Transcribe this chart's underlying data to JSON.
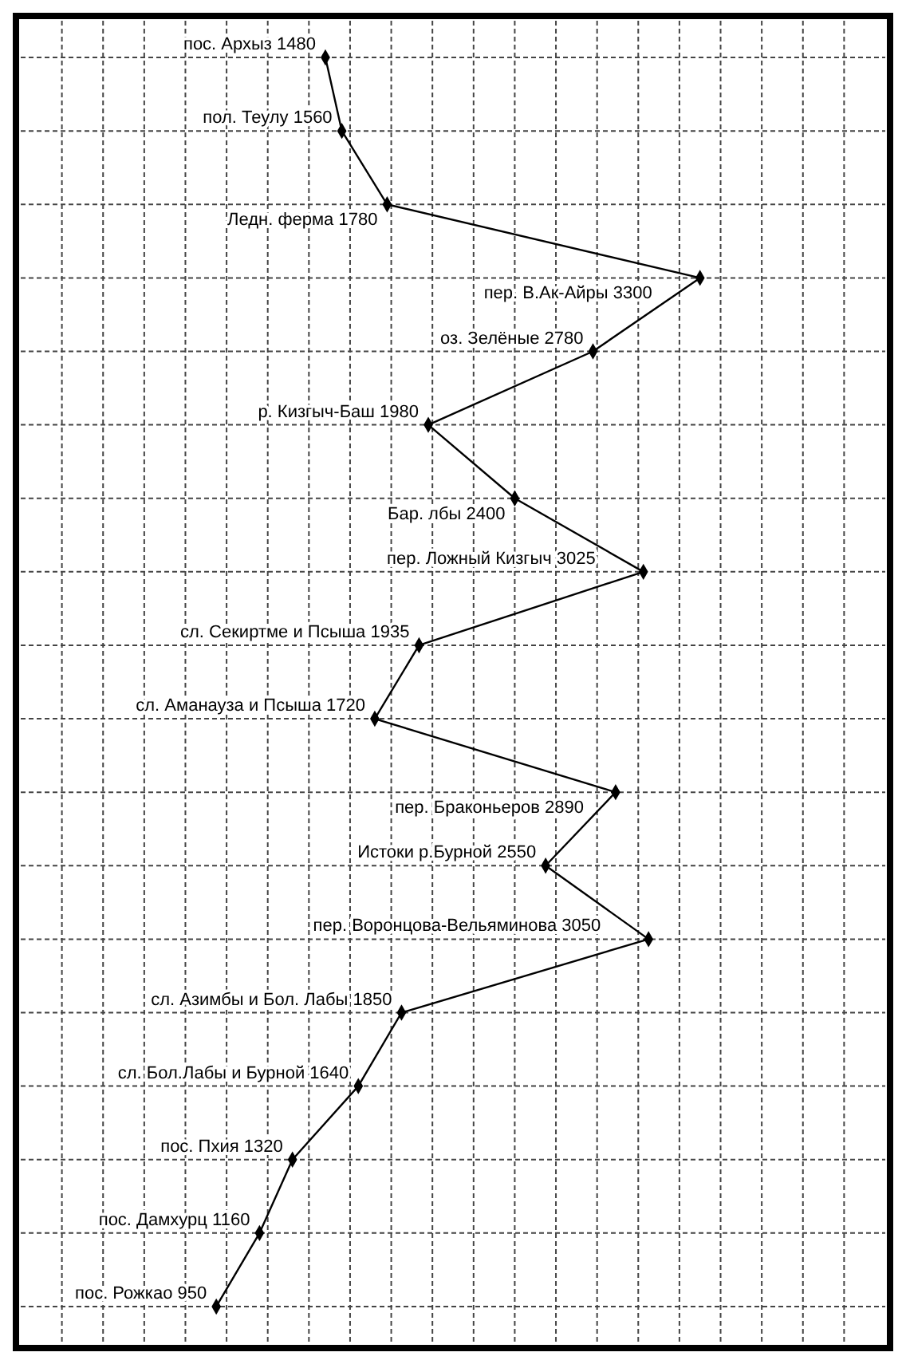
{
  "chart_data": {
    "type": "line",
    "orientation": "horizontal",
    "categories": [
      "пос. Архыз",
      "пол. Теулу",
      "Ледн. ферма",
      "пер. В.Ак-Айры",
      "оз. Зелёные",
      "р. Кизгыч-Баш",
      "Бар. лбы",
      "пер. Ложный Кизгыч",
      "сл. Секиртме и Псыша",
      "сл. Аманауза и Псыша",
      "пер. Браконьеров",
      "Истоки р.Бурной",
      "пер. Воронцова-Вельяминова",
      "сл. Азимбы и Бол. Лабы",
      "сл. Бол.Лабы и Бурной",
      "пос. Пхия",
      "пос. Дамхурц",
      "пос. Рожкао"
    ],
    "values": [
      1480,
      1560,
      1780,
      3300,
      2780,
      1980,
      2400,
      3025,
      1935,
      1720,
      2890,
      2550,
      3050,
      1850,
      1640,
      1320,
      1160,
      950
    ],
    "data_labels": true,
    "color": "#000000",
    "xlim": [
      0,
      4200
    ],
    "xticks": [
      {
        "value": 200,
        "label": null
      },
      {
        "value": 400,
        "label": null
      },
      {
        "value": 600,
        "label": null
      },
      {
        "value": 800,
        "label": null
      },
      {
        "value": 1000,
        "label": null
      },
      {
        "value": 1200,
        "label": null
      },
      {
        "value": 1400,
        "label": null
      },
      {
        "value": 1600,
        "label": null
      },
      {
        "value": 1800,
        "label": null
      },
      {
        "value": 2000,
        "label": null
      },
      {
        "value": 2200,
        "label": null
      },
      {
        "value": 2400,
        "label": null
      },
      {
        "value": 2600,
        "label": null
      },
      {
        "value": 2800,
        "label": null
      },
      {
        "value": 3000,
        "label": null
      },
      {
        "value": 3200,
        "label": null
      },
      {
        "value": 3400,
        "label": null
      },
      {
        "value": 3600,
        "label": null
      },
      {
        "value": 3800,
        "label": null
      },
      {
        "value": 4000,
        "label": null
      }
    ],
    "grid": true,
    "marker": "diamond",
    "line_style": "solid"
  }
}
